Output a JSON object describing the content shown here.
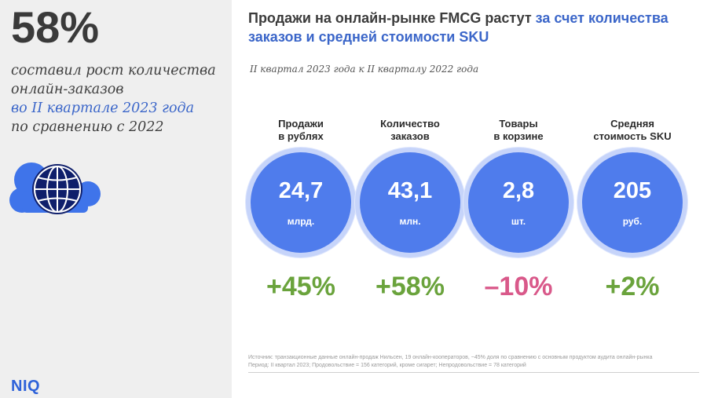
{
  "headline": {
    "number": "58%",
    "lines": [
      {
        "text": "составил рост количества",
        "highlight": false
      },
      {
        "text": "онлайн-заказов",
        "highlight": false
      },
      {
        "text": "во II квартале 2023 года",
        "highlight": true
      },
      {
        "text": "по сравнению с 2022",
        "highlight": false
      }
    ],
    "icon": "cloud-globe-icon"
  },
  "brand": {
    "logo": "NIQ"
  },
  "title": {
    "part1": "Продажи на онлайн-рынке FMCG растут ",
    "part2": "за счет количества заказов и средней стоимости SKU"
  },
  "subtitle": "II квартал 2023 года к II кварталу 2022 года",
  "metrics": [
    {
      "label_lines": [
        "Продажи",
        "в рублях"
      ],
      "value": "24,7",
      "unit": "млрд.",
      "change": "+45%",
      "change_color": "#6aa33c"
    },
    {
      "label_lines": [
        "Количество",
        "заказов"
      ],
      "value": "43,1",
      "unit": "млн.",
      "change": "+58%",
      "change_color": "#6aa33c"
    },
    {
      "label_lines": [
        "Товары",
        "в корзине"
      ],
      "value": "2,8",
      "unit": "шт.",
      "change": "–10%",
      "change_color": "#d9598a"
    },
    {
      "label_lines": [
        "Средняя",
        "стоимость SKU"
      ],
      "value": "205",
      "unit": "руб.",
      "change": "+2%",
      "change_color": "#6aa33c"
    }
  ],
  "colors": {
    "accent": "#3b66c9",
    "circle": "#4f7cec",
    "positive": "#6aa33c",
    "negative": "#d9598a"
  },
  "footnote": {
    "line1": "Источник: транзакционные данные онлайн-продаж Нильсен, 19 онлайн-кооператоров, ~45% доля по сравнению с основным продуктом аудита онлайн-рынка",
    "line2": "Период: II квартал 2023; Продовольствие = 156 категорий, кроме сигарет; Непродовольствие = 78 категорий"
  }
}
